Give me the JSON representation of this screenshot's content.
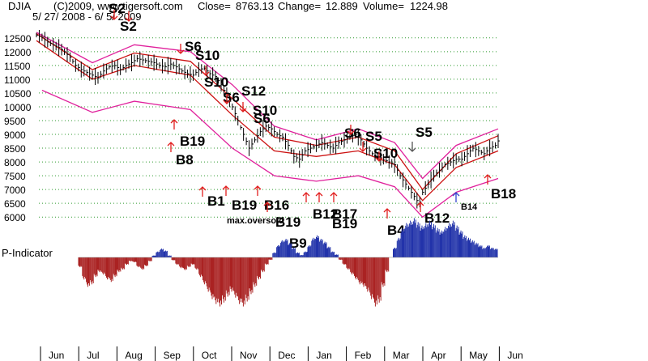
{
  "header": {
    "symbol": "DJIA",
    "copyright": "(C)2009, www.tigersoft.com",
    "close_label": "Close=",
    "close": "8763.13",
    "change_label": "Change=",
    "change": "12.889",
    "volume_label": "Volume=",
    "volume": "1224.98",
    "date_range": "5/ 27/ 2008 - 6/ 5/ 2009"
  },
  "chart_data": {
    "type": "line",
    "title": "DJIA",
    "ylim": [
      5800,
      12700
    ],
    "yticks": [
      12500,
      12000,
      11500,
      11000,
      10500,
      10000,
      9500,
      9000,
      8500,
      8000,
      7500,
      7000,
      6500,
      6000
    ],
    "grid": true,
    "x_axis_months": [
      "Jun",
      "Jul",
      "Aug",
      "Sep",
      "Oct",
      "Nov",
      "Dec",
      "Jan",
      "Feb",
      "Mar",
      "Apr",
      "May",
      "Jun"
    ],
    "series": [
      {
        "name": "DJIA",
        "points": [
          [
            0,
            12600
          ],
          [
            2,
            12520
          ],
          [
            4,
            12350
          ],
          [
            6,
            12250
          ],
          [
            8,
            12150
          ],
          [
            10,
            12000
          ],
          [
            12,
            11800
          ],
          [
            14,
            11500
          ],
          [
            16,
            11350
          ],
          [
            18,
            11250
          ],
          [
            20,
            11150
          ],
          [
            22,
            11050
          ],
          [
            24,
            11300
          ],
          [
            26,
            11450
          ],
          [
            28,
            11500
          ],
          [
            30,
            11350
          ],
          [
            32,
            11500
          ],
          [
            34,
            11600
          ],
          [
            36,
            11750
          ],
          [
            38,
            11700
          ],
          [
            40,
            11650
          ],
          [
            42,
            11600
          ],
          [
            44,
            11500
          ],
          [
            46,
            11450
          ],
          [
            48,
            11550
          ],
          [
            50,
            11450
          ],
          [
            52,
            11300
          ],
          [
            54,
            11200
          ],
          [
            56,
            11150
          ],
          [
            58,
            11350
          ],
          [
            60,
            11400
          ],
          [
            62,
            11200
          ],
          [
            64,
            11100
          ],
          [
            66,
            10800
          ],
          [
            68,
            10400
          ],
          [
            70,
            10000
          ],
          [
            72,
            9500
          ],
          [
            74,
            9000
          ],
          [
            76,
            8500
          ],
          [
            78,
            8800
          ],
          [
            80,
            9100
          ],
          [
            82,
            9300
          ],
          [
            84,
            9200
          ],
          [
            86,
            9000
          ],
          [
            88,
            8900
          ],
          [
            90,
            8600
          ],
          [
            92,
            8200
          ],
          [
            94,
            8100
          ],
          [
            96,
            8400
          ],
          [
            98,
            8500
          ],
          [
            100,
            8600
          ],
          [
            102,
            8700
          ],
          [
            104,
            8600
          ],
          [
            106,
            8500
          ],
          [
            108,
            8700
          ],
          [
            110,
            8800
          ],
          [
            112,
            8900
          ],
          [
            114,
            9000
          ],
          [
            116,
            8800
          ],
          [
            118,
            8500
          ],
          [
            120,
            8300
          ],
          [
            122,
            8200
          ],
          [
            124,
            8100
          ],
          [
            126,
            8000
          ],
          [
            128,
            7900
          ],
          [
            130,
            7500
          ],
          [
            132,
            7200
          ],
          [
            134,
            6900
          ],
          [
            136,
            6600
          ],
          [
            137,
            6550
          ],
          [
            138,
            6900
          ],
          [
            140,
            7200
          ],
          [
            142,
            7500
          ],
          [
            144,
            7700
          ],
          [
            146,
            7900
          ],
          [
            148,
            8000
          ],
          [
            150,
            8100
          ],
          [
            152,
            8100
          ],
          [
            154,
            8300
          ],
          [
            156,
            8500
          ],
          [
            158,
            8400
          ],
          [
            160,
            8300
          ],
          [
            162,
            8500
          ],
          [
            164,
            8600
          ],
          [
            165,
            8763
          ]
        ]
      },
      {
        "name": "upper band 2",
        "points": [
          [
            0,
            12700
          ],
          [
            20,
            11600
          ],
          [
            35,
            12250
          ],
          [
            55,
            12000
          ],
          [
            70,
            10800
          ],
          [
            85,
            9300
          ],
          [
            100,
            8800
          ],
          [
            115,
            9200
          ],
          [
            128,
            8700
          ],
          [
            138,
            7400
          ],
          [
            150,
            8600
          ],
          [
            165,
            9200
          ]
        ]
      },
      {
        "name": "upper band 1",
        "points": [
          [
            0,
            12650
          ],
          [
            20,
            11350
          ],
          [
            35,
            11950
          ],
          [
            55,
            11650
          ],
          [
            70,
            10300
          ],
          [
            85,
            8900
          ],
          [
            100,
            8600
          ],
          [
            115,
            8900
          ],
          [
            128,
            8400
          ],
          [
            138,
            7000
          ],
          [
            150,
            8300
          ],
          [
            165,
            8950
          ]
        ]
      },
      {
        "name": "lower band 1",
        "points": [
          [
            0,
            12400
          ],
          [
            20,
            11000
          ],
          [
            35,
            11500
          ],
          [
            55,
            11150
          ],
          [
            70,
            9700
          ],
          [
            85,
            8400
          ],
          [
            100,
            8200
          ],
          [
            115,
            8400
          ],
          [
            128,
            7900
          ],
          [
            138,
            6600
          ],
          [
            150,
            7800
          ],
          [
            165,
            8400
          ]
        ]
      },
      {
        "name": "lower band 2",
        "points": [
          [
            2,
            10600
          ],
          [
            20,
            9800
          ],
          [
            35,
            10200
          ],
          [
            55,
            9900
          ],
          [
            70,
            8500
          ],
          [
            85,
            7500
          ],
          [
            100,
            7300
          ],
          [
            115,
            7500
          ],
          [
            128,
            7100
          ],
          [
            138,
            6000
          ],
          [
            150,
            6900
          ],
          [
            165,
            7400
          ]
        ]
      }
    ],
    "indicator": {
      "name": "P-Indicator",
      "values": [
        -20,
        -45,
        -60,
        -55,
        -40,
        -30,
        -35,
        -45,
        -50,
        -40,
        -30,
        -25,
        -15,
        -8,
        -10,
        -20,
        -25,
        -18,
        -8,
        4,
        12,
        18,
        14,
        4,
        -6,
        -15,
        -22,
        -26,
        -20,
        -15,
        -25,
        -40,
        -55,
        -70,
        -85,
        -95,
        -100,
        -92,
        -80,
        -70,
        -82,
        -95,
        -100,
        -90,
        -75,
        -60,
        -45,
        -30,
        -15,
        -5,
        10,
        25,
        35,
        38,
        30,
        20,
        10,
        5,
        12,
        25,
        40,
        45,
        38,
        32,
        22,
        12,
        6,
        -5,
        -15,
        -25,
        -35,
        -45,
        -55,
        -60,
        -70,
        -85,
        -100,
        -92,
        -60,
        -30,
        0,
        20,
        40,
        60,
        70,
        75,
        80,
        72,
        65,
        70,
        75,
        68,
        60,
        55,
        62,
        70,
        75,
        65,
        55,
        45,
        40,
        35,
        30,
        25,
        20,
        25,
        20,
        18
      ],
      "neg_color": "#aa2222",
      "pos_color": "#2233aa",
      "label": "P-Indicator"
    },
    "annotations": [
      "S2",
      "S2",
      "S6",
      "S10",
      "S10",
      "S6",
      "S12",
      "S10",
      "S6",
      "S6",
      "S5",
      "S10",
      "S5",
      "B19",
      "B8",
      "B1",
      "B19",
      "B16",
      "B19",
      "B9",
      "B12",
      "B17",
      "B19",
      "B4",
      "B12",
      "B14",
      "B18",
      "max.oversold"
    ]
  },
  "colors": {
    "band_outer": "#e0219c",
    "band_inner": "#cc1111",
    "price": "#000000",
    "grid": "#2f9a2f",
    "signal_arrow": "#e11d1d",
    "buy_arrow_blue": "#3344cc"
  }
}
